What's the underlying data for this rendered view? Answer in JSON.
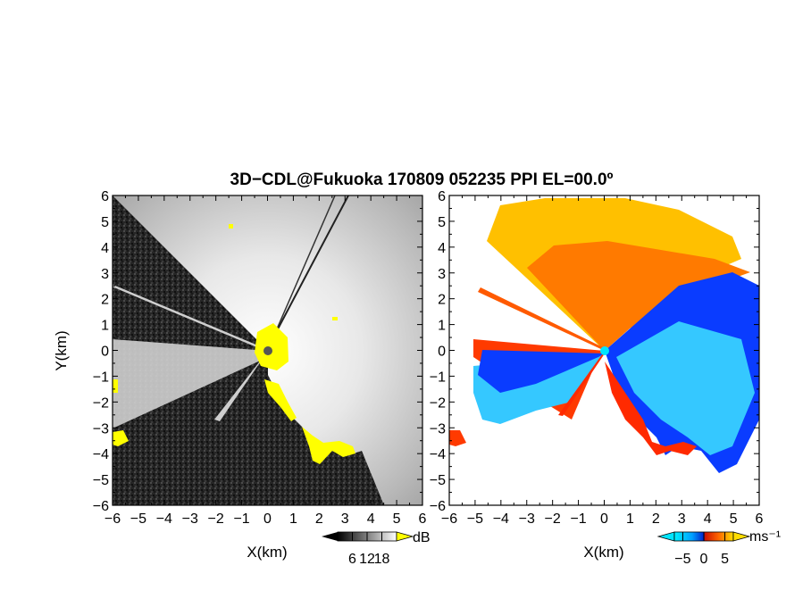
{
  "chart_data": {
    "title": "3D−CDL@Fukuoka 170809 052235 PPI EL=00.0º",
    "panels": [
      {
        "type": "heatmap",
        "field": "reflectivity",
        "xlabel": "X(km)",
        "ylabel": "Y(km)",
        "xlim": [
          -6,
          6
        ],
        "ylim": [
          -6,
          6
        ],
        "xticks": [
          "−6",
          "−5",
          "−4",
          "−3",
          "−2",
          "−1",
          "0",
          "1",
          "2",
          "3",
          "4",
          "5",
          "6"
        ],
        "yticks": [
          "6",
          "5",
          "4",
          "3",
          "2",
          "1",
          "0",
          "−1",
          "−2",
          "−3",
          "−4",
          "−5",
          "−6"
        ],
        "colorbar": {
          "unit": "dB",
          "ticks": [
            "6",
            "12",
            "18"
          ],
          "range": [
            0,
            24
          ],
          "colormap": "grayscale",
          "over_color": "#ffff00"
        },
        "colors": {
          "clutter": "#ffff00",
          "background": "#1a1a1a"
        }
      },
      {
        "type": "heatmap",
        "field": "doppler velocity",
        "xlabel": "X(km)",
        "xlim": [
          -6,
          6
        ],
        "ylim": [
          -6,
          6
        ],
        "xticks": [
          "−6",
          "−5",
          "−4",
          "−3",
          "−2",
          "−1",
          "0",
          "1",
          "2",
          "3",
          "4",
          "5",
          "6"
        ],
        "yticks": [
          "6",
          "5",
          "4",
          "3",
          "2",
          "1",
          "0",
          "−1",
          "−2",
          "−3",
          "−4",
          "−5",
          "−6"
        ],
        "colorbar": {
          "unit": "ms⁻¹",
          "ticks": [
            "−5",
            "0",
            "5"
          ],
          "range": [
            -7,
            7
          ],
          "colormap": "cyan-blue-red-orange-yellow"
        },
        "colors": {
          "cyan": "#00e5ff",
          "blue": "#0033ff",
          "red": "#ff2200",
          "orange": "#ff8800",
          "yellow": "#ffcc00"
        }
      }
    ]
  }
}
